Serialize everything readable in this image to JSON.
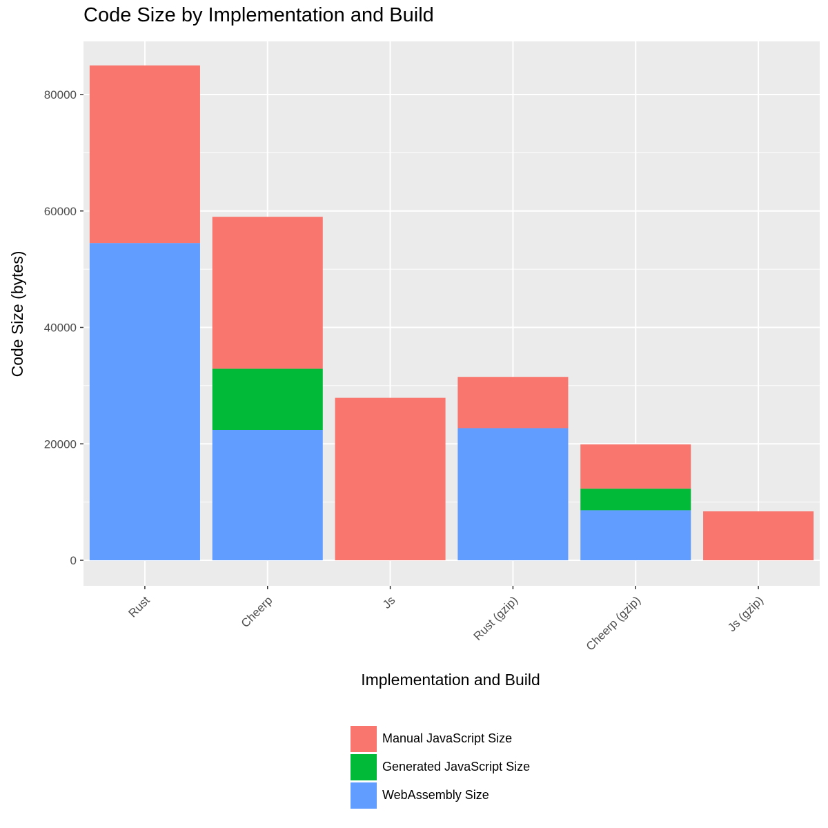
{
  "chart_data": {
    "type": "bar",
    "stacked": true,
    "title": "Code Size by Implementation and Build",
    "xlabel": "Implementation and Build",
    "ylabel": "Code Size (bytes)",
    "categories": [
      "Rust",
      "Cheerp",
      "Js",
      "Rust (gzip)",
      "Cheerp (gzip)",
      "Js (gzip)"
    ],
    "ylim": [
      -4000,
      89000
    ],
    "yticks": [
      0,
      20000,
      40000,
      60000,
      80000
    ],
    "grid": true,
    "legend_position": "bottom",
    "series": [
      {
        "name": "WebAssembly Size",
        "color": "#619CFF",
        "values": [
          54500,
          22400,
          0,
          22700,
          8600,
          0
        ]
      },
      {
        "name": "Generated JavaScript Size",
        "color": "#00BA38",
        "values": [
          0,
          10500,
          0,
          0,
          3700,
          0
        ]
      },
      {
        "name": "Manual JavaScript Size",
        "color": "#F8766D",
        "values": [
          30500,
          26100,
          27900,
          8800,
          7600,
          8400
        ]
      }
    ],
    "legend_order": [
      "Manual JavaScript Size",
      "Generated JavaScript Size",
      "WebAssembly Size"
    ]
  }
}
